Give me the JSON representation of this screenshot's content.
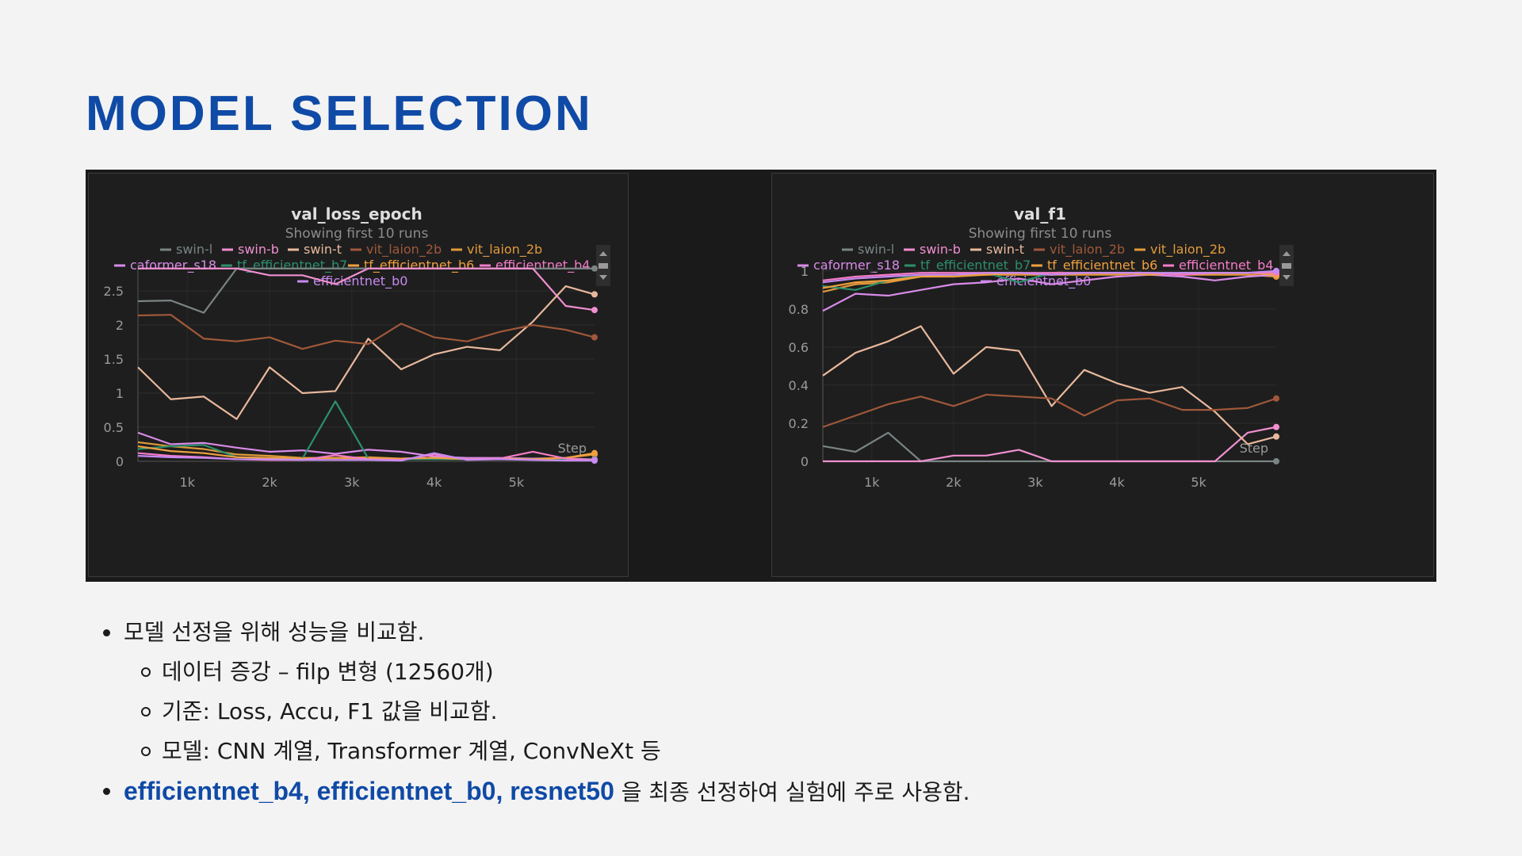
{
  "slide": {
    "title": "MODEL SELECTION"
  },
  "chart_data": [
    {
      "type": "line",
      "title": "val_loss_epoch",
      "subtitle": "Showing first 10 runs",
      "xlabel": "Step",
      "ylabel": "",
      "xlim": [
        400,
        5950
      ],
      "ylim": [
        0,
        2.85
      ],
      "x_ticks": [
        1000,
        2000,
        3000,
        4000,
        5000
      ],
      "x_tick_labels": [
        "1k",
        "2k",
        "3k",
        "4k",
        "5k"
      ],
      "y_ticks": [
        0,
        0.5,
        1,
        1.5,
        2,
        2.5
      ],
      "y_tick_labels": [
        "0",
        "0.5",
        "1",
        "1.5",
        "2",
        "2.5"
      ],
      "grid": true,
      "legend_position": "top",
      "series": [
        {
          "name": "swin-l",
          "color": "#7a8484",
          "x": [
            400,
            800,
            1200,
            1600,
            2000,
            2400,
            2800,
            3200,
            3600,
            4000,
            4400,
            4800,
            5200,
            5600,
            5950
          ],
          "y": [
            2.35,
            2.36,
            2.18,
            2.83,
            2.83,
            2.83,
            2.83,
            2.83,
            2.83,
            2.83,
            2.83,
            2.83,
            2.83,
            2.83,
            2.83
          ]
        },
        {
          "name": "swin-b",
          "color": "#f08fd0",
          "x": [
            400,
            800,
            1200,
            1600,
            2000,
            2400,
            2800,
            3200,
            3600,
            4000,
            4400,
            4800,
            5200,
            5600,
            5950
          ],
          "y": [
            2.83,
            2.83,
            2.83,
            2.83,
            2.73,
            2.73,
            2.6,
            2.83,
            2.83,
            2.83,
            2.83,
            2.83,
            2.83,
            2.28,
            2.22
          ]
        },
        {
          "name": "swin-t",
          "color": "#e8b89c",
          "x": [
            400,
            800,
            1200,
            1600,
            2000,
            2400,
            2800,
            3200,
            3600,
            4000,
            4400,
            4800,
            5200,
            5600,
            5950
          ],
          "y": [
            1.38,
            0.91,
            0.95,
            0.62,
            1.38,
            1.0,
            1.03,
            1.8,
            1.35,
            1.57,
            1.68,
            1.63,
            2.05,
            2.57,
            2.45
          ]
        },
        {
          "name": "vit_laion_2b",
          "color": "#a0583a",
          "x": [
            400,
            800,
            1200,
            1600,
            2000,
            2400,
            2800,
            3200,
            3600,
            4000,
            4400,
            4800,
            5200,
            5600,
            5950
          ],
          "y": [
            2.14,
            2.15,
            1.8,
            1.76,
            1.82,
            1.65,
            1.77,
            1.72,
            2.02,
            1.82,
            1.76,
            1.9,
            2.0,
            1.93,
            1.82
          ]
        },
        {
          "name": "vit_laion_2b",
          "color": "#e09a3a",
          "x": [
            400,
            800,
            1200,
            1600,
            2000,
            2400,
            2800,
            3200,
            3600,
            4000,
            4400,
            4800,
            5200,
            5600,
            5950
          ],
          "y": [
            0.28,
            0.22,
            0.18,
            0.1,
            0.08,
            0.05,
            0.05,
            0.06,
            0.04,
            0.05,
            0.04,
            0.03,
            0.04,
            0.05,
            0.1
          ]
        },
        {
          "name": "caformer_s18",
          "color": "#d98be8",
          "x": [
            400,
            800,
            1200,
            1600,
            2000,
            2400,
            2800,
            3200,
            3600,
            4000,
            4400,
            4800,
            5200,
            5600,
            5950
          ],
          "y": [
            0.42,
            0.25,
            0.27,
            0.2,
            0.14,
            0.16,
            0.11,
            0.17,
            0.14,
            0.07,
            0.05,
            0.05,
            0.04,
            0.04,
            0.03
          ]
        },
        {
          "name": "tf_efficientnet_b7",
          "color": "#2c8f6c",
          "x": [
            400,
            800,
            1200,
            1600,
            2000,
            2400,
            2800,
            3200,
            3600,
            4000,
            4400,
            4800,
            5200,
            5600,
            5950
          ],
          "y": [
            0.18,
            0.22,
            0.24,
            0.06,
            0.05,
            0.04,
            0.88,
            0.04,
            0.03,
            0.03,
            0.03,
            0.03,
            0.03,
            0.03,
            0.03
          ]
        },
        {
          "name": "tf_efficientnet_b6",
          "color": "#f0a040",
          "x": [
            400,
            800,
            1200,
            1600,
            2000,
            2400,
            2800,
            3200,
            3600,
            4000,
            4400,
            4800,
            5200,
            5600,
            5950
          ],
          "y": [
            0.22,
            0.15,
            0.12,
            0.06,
            0.05,
            0.04,
            0.05,
            0.04,
            0.04,
            0.05,
            0.03,
            0.04,
            0.03,
            0.05,
            0.12
          ]
        },
        {
          "name": "efficientnet_b4",
          "color": "#f47cc8",
          "x": [
            400,
            800,
            1200,
            1600,
            2000,
            2400,
            2800,
            3200,
            3600,
            4000,
            4400,
            4800,
            5200,
            5600,
            5950
          ],
          "y": [
            0.12,
            0.08,
            0.06,
            0.03,
            0.02,
            0.02,
            0.09,
            0.03,
            0.02,
            0.1,
            0.03,
            0.04,
            0.14,
            0.04,
            0.02
          ]
        },
        {
          "name": "efficientnet_b0",
          "color": "#c68af0",
          "x": [
            400,
            800,
            1200,
            1600,
            2000,
            2400,
            2800,
            3200,
            3600,
            4000,
            4400,
            4800,
            5200,
            5600,
            5950
          ],
          "y": [
            0.08,
            0.06,
            0.05,
            0.03,
            0.03,
            0.02,
            0.02,
            0.02,
            0.01,
            0.12,
            0.02,
            0.03,
            0.02,
            0.01,
            0.01
          ]
        }
      ]
    },
    {
      "type": "line",
      "title": "val_f1",
      "subtitle": "Showing first 10 runs",
      "xlabel": "Step",
      "ylabel": "",
      "xlim": [
        400,
        5950
      ],
      "ylim": [
        0,
        1.02
      ],
      "x_ticks": [
        1000,
        2000,
        3000,
        4000,
        5000
      ],
      "x_tick_labels": [
        "1k",
        "2k",
        "3k",
        "4k",
        "5k"
      ],
      "y_ticks": [
        0,
        0.2,
        0.4,
        0.6,
        0.8,
        1
      ],
      "y_tick_labels": [
        "0",
        "0.2",
        "0.4",
        "0.6",
        "0.8",
        "1"
      ],
      "grid": true,
      "legend_position": "top",
      "series": [
        {
          "name": "swin-l",
          "color": "#7a8484",
          "x": [
            400,
            800,
            1200,
            1600,
            2000,
            2400,
            2800,
            3200,
            3600,
            4000,
            4400,
            4800,
            5200,
            5600,
            5950
          ],
          "y": [
            0.08,
            0.05,
            0.15,
            0.0,
            0.0,
            0.0,
            0.0,
            0.0,
            0.0,
            0.0,
            0.0,
            0.0,
            0.0,
            0.0,
            0.0
          ]
        },
        {
          "name": "swin-b",
          "color": "#f08fd0",
          "x": [
            400,
            800,
            1200,
            1600,
            2000,
            2400,
            2800,
            3200,
            3600,
            4000,
            4400,
            4800,
            5200,
            5600,
            5950
          ],
          "y": [
            0.0,
            0.0,
            0.0,
            0.0,
            0.03,
            0.03,
            0.06,
            0.0,
            0.0,
            0.0,
            0.0,
            0.0,
            0.0,
            0.15,
            0.18
          ]
        },
        {
          "name": "swin-t",
          "color": "#e8b89c",
          "x": [
            400,
            800,
            1200,
            1600,
            2000,
            2400,
            2800,
            3200,
            3600,
            4000,
            4400,
            4800,
            5200,
            5600,
            5950
          ],
          "y": [
            0.45,
            0.57,
            0.63,
            0.71,
            0.46,
            0.6,
            0.58,
            0.29,
            0.48,
            0.41,
            0.36,
            0.39,
            0.26,
            0.09,
            0.13
          ]
        },
        {
          "name": "vit_laion_2b",
          "color": "#a0583a",
          "x": [
            400,
            800,
            1200,
            1600,
            2000,
            2400,
            2800,
            3200,
            3600,
            4000,
            4400,
            4800,
            5200,
            5600,
            5950
          ],
          "y": [
            0.18,
            0.24,
            0.3,
            0.34,
            0.29,
            0.35,
            0.34,
            0.33,
            0.24,
            0.32,
            0.33,
            0.27,
            0.27,
            0.28,
            0.33
          ]
        },
        {
          "name": "vit_laion_2b",
          "color": "#e09a3a",
          "x": [
            400,
            800,
            1200,
            1600,
            2000,
            2400,
            2800,
            3200,
            3600,
            4000,
            4400,
            4800,
            5200,
            5600,
            5950
          ],
          "y": [
            0.89,
            0.93,
            0.94,
            0.97,
            0.97,
            0.98,
            0.98,
            0.98,
            0.98,
            0.98,
            0.99,
            0.98,
            0.98,
            0.98,
            0.97
          ]
        },
        {
          "name": "caformer_s18",
          "color": "#d98be8",
          "x": [
            400,
            800,
            1200,
            1600,
            2000,
            2400,
            2800,
            3200,
            3600,
            4000,
            4400,
            4800,
            5200,
            5600,
            5950
          ],
          "y": [
            0.79,
            0.88,
            0.87,
            0.9,
            0.93,
            0.94,
            0.96,
            0.93,
            0.95,
            0.97,
            0.98,
            0.97,
            0.95,
            0.97,
            0.98
          ]
        },
        {
          "name": "tf_efficientnet_b7",
          "color": "#2c8f6c",
          "x": [
            400,
            800,
            1200,
            1600,
            2000,
            2400,
            2800,
            3200,
            3600,
            4000,
            4400,
            4800,
            5200,
            5600,
            5950
          ],
          "y": [
            0.92,
            0.9,
            0.95,
            0.98,
            0.98,
            0.99,
            0.94,
            0.99,
            0.99,
            0.99,
            0.99,
            0.99,
            0.99,
            0.99,
            0.99
          ]
        },
        {
          "name": "tf_efficientnet_b6",
          "color": "#f0a040",
          "x": [
            400,
            800,
            1200,
            1600,
            2000,
            2400,
            2800,
            3200,
            3600,
            4000,
            4400,
            4800,
            5200,
            5600,
            5950
          ],
          "y": [
            0.91,
            0.94,
            0.95,
            0.97,
            0.98,
            0.98,
            0.99,
            0.98,
            0.99,
            0.99,
            0.98,
            0.99,
            0.99,
            0.99,
            0.98
          ]
        },
        {
          "name": "efficientnet_b4",
          "color": "#f47cc8",
          "x": [
            400,
            800,
            1200,
            1600,
            2000,
            2400,
            2800,
            3200,
            3600,
            4000,
            4400,
            4800,
            5200,
            5600,
            5950
          ],
          "y": [
            0.95,
            0.97,
            0.98,
            0.99,
            0.99,
            0.99,
            0.99,
            0.99,
            0.99,
            0.99,
            0.99,
            0.98,
            0.99,
            0.99,
            0.99
          ]
        },
        {
          "name": "efficientnet_b0",
          "color": "#c68af0",
          "x": [
            400,
            800,
            1200,
            1600,
            2000,
            2400,
            2800,
            3200,
            3600,
            4000,
            4400,
            4800,
            5200,
            5600,
            5950
          ],
          "y": [
            0.94,
            0.96,
            0.97,
            0.98,
            0.98,
            0.99,
            0.99,
            0.98,
            0.99,
            0.99,
            0.99,
            0.99,
            0.99,
            0.99,
            1.0
          ]
        }
      ]
    }
  ],
  "bullets": {
    "item1": "모델 선정을 위해 성능을 비교함.",
    "sub1": "데이터 증강 – filp 변형 (12560개)",
    "sub2": "기준: Loss, Accu, F1 값을 비교함.",
    "sub3": "모델: CNN 계열, Transformer 계열, ConvNeXt 등",
    "item2_bold": "efficientnet_b4,  efficientnet_b0,  resnet50",
    "item2_rest": " 을 최종 선정하여 실험에 주로 사용함."
  }
}
